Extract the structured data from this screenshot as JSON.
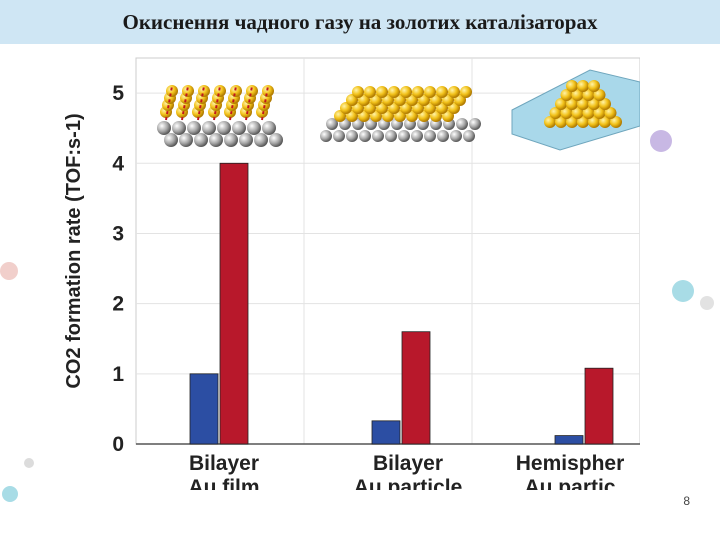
{
  "slide": {
    "title": "Окиснення чадного газу на золотих каталізаторах",
    "page_number": "8"
  },
  "chart_data": {
    "type": "bar",
    "ylabel": "CO2 formation rate (TOF:s-1)",
    "ylim": [
      0,
      5.5
    ],
    "yticks": [
      "0",
      "1",
      "2",
      "3",
      "4",
      "5"
    ],
    "grid": true,
    "categories": [
      [
        "Bilayer",
        "Au film"
      ],
      [
        "Bilayer",
        "Au particle"
      ],
      [
        "Hemispher",
        "Au partic"
      ]
    ],
    "series": [
      {
        "color": "#2c4ea3",
        "values": [
          1.0,
          0.33,
          0.12
        ]
      },
      {
        "color": "#b8182b",
        "values": [
          4.0,
          1.6,
          1.08
        ]
      }
    ]
  },
  "decor": {
    "colors": {
      "pink": "#e6a6a0",
      "teal": "#5cc2d2",
      "purple": "#9c83c9",
      "gray": "#bfbfbf"
    }
  }
}
